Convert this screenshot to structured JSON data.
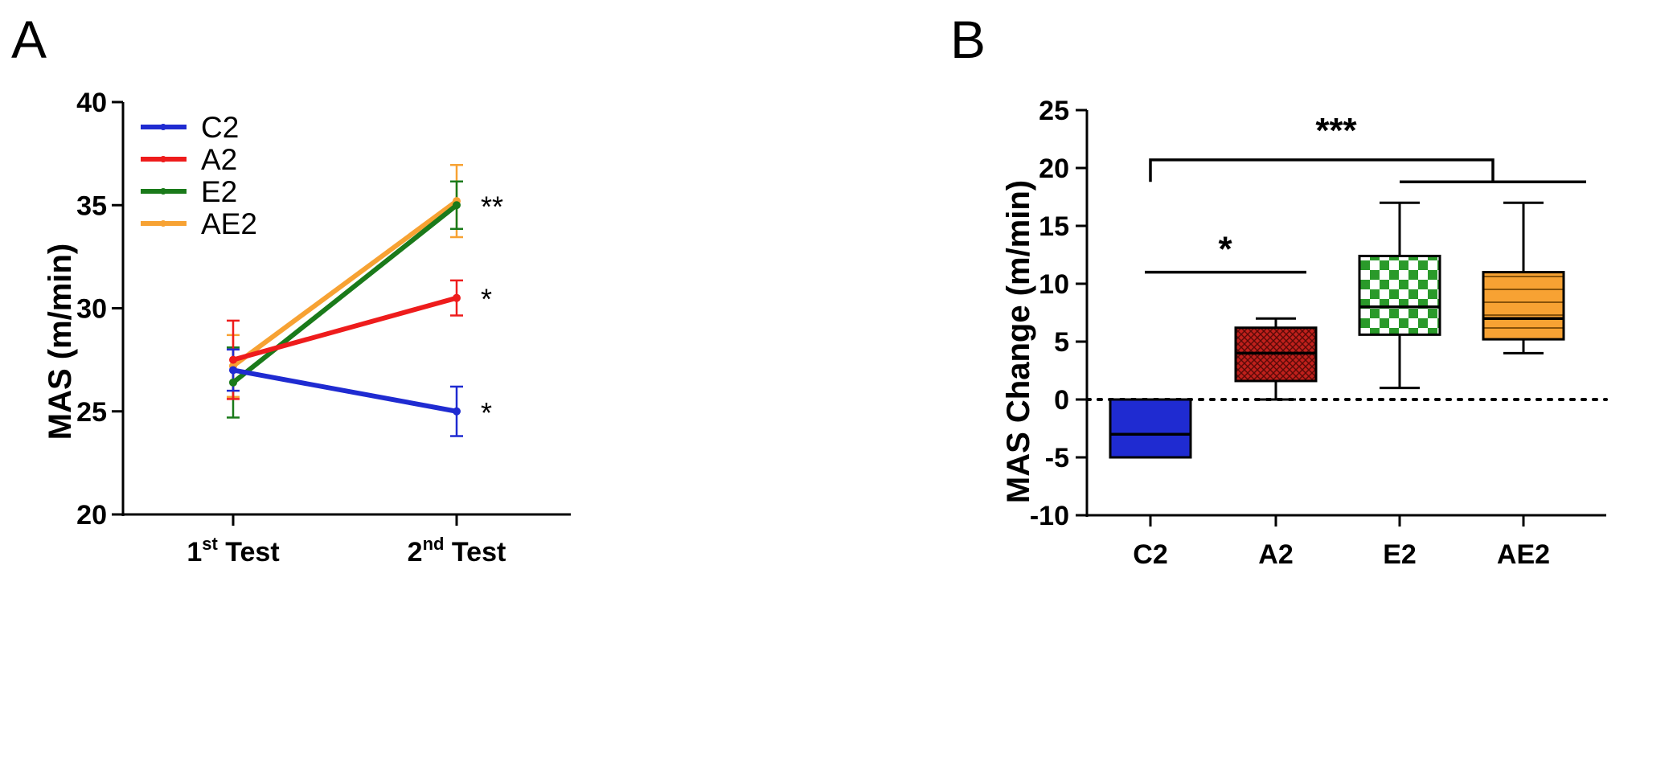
{
  "panels": {
    "a": "A",
    "b": "B"
  },
  "chart_data": [
    {
      "type": "line",
      "panel": "A",
      "title": "",
      "xlabel": "",
      "ylabel": "MAS (m/min)",
      "categories": [
        {
          "base": "1",
          "sup": "st",
          "rest": " Test"
        },
        {
          "base": "2",
          "sup": "nd",
          "rest": " Test"
        }
      ],
      "ylim": [
        20,
        40
      ],
      "yticks": [
        "20",
        "25",
        "30",
        "35",
        "40"
      ],
      "legend_position": "top-left",
      "series": [
        {
          "name": "C2",
          "color": "#1f2bd1",
          "values": [
            27.0,
            25.0
          ],
          "errors": [
            1.0,
            1.2
          ],
          "annotation": "*"
        },
        {
          "name": "A2",
          "color": "#ee1c1c",
          "values": [
            27.5,
            30.5
          ],
          "errors": [
            1.9,
            0.85
          ],
          "annotation": "*"
        },
        {
          "name": "E2",
          "color": "#1a7a1a",
          "values": [
            26.4,
            35.0
          ],
          "errors": [
            1.7,
            1.15
          ],
          "annotation": "**"
        },
        {
          "name": "AE2",
          "color": "#f7a233",
          "values": [
            27.2,
            35.2
          ],
          "errors": [
            1.5,
            1.75
          ],
          "annotation": ""
        }
      ]
    },
    {
      "type": "box",
      "panel": "B",
      "title": "",
      "xlabel": "",
      "ylabel": "MAS Change (m/min)",
      "ylim": [
        -10,
        25
      ],
      "yticks": [
        "-10",
        "-5",
        "0",
        "5",
        "10",
        "15",
        "20",
        "25"
      ],
      "reference_line": 0,
      "categories": [
        "C2",
        "A2",
        "E2",
        "AE2"
      ],
      "boxes": [
        {
          "name": "C2",
          "min": -5,
          "q1": -5,
          "median": -3,
          "q3": 0,
          "max": 0,
          "color": "#1f2bd1",
          "pattern": "solid"
        },
        {
          "name": "A2",
          "min": 0,
          "q1": 1.6,
          "median": 4,
          "q3": 6.2,
          "max": 7,
          "color": "#c0201c",
          "pattern": "crosshatch"
        },
        {
          "name": "E2",
          "min": 1,
          "q1": 5.6,
          "median": 8,
          "q3": 12.4,
          "max": 17,
          "color": "#2a9a2a",
          "pattern": "checker"
        },
        {
          "name": "AE2",
          "min": 4,
          "q1": 5.2,
          "median": 7,
          "q3": 11,
          "max": 17,
          "color": "#f7a233",
          "pattern": "horizontal-lines"
        }
      ],
      "significance": [
        {
          "label": "*",
          "from": "C2",
          "to": "A2",
          "y": 11
        },
        {
          "label": "***",
          "from": "C2",
          "to": "E2,AE2",
          "y": 20.7
        }
      ]
    }
  ]
}
